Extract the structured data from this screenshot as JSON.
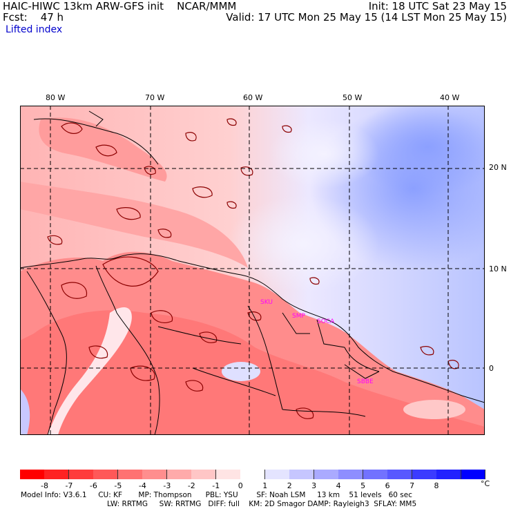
{
  "header": {
    "line1_left": "HAIC-HIWC 13km ARW-GFS init    NCAR/MMM",
    "line1_right": "Init: 18 UTC Sat 23 May 15",
    "line2_left": "Fcst:    47 h",
    "line2_right": "Valid: 17 UTC Mon 25 May 15 (14 LST Mon 25 May 15)",
    "field_name": "Lifted index"
  },
  "map": {
    "lon_labels": [
      "80 W",
      "70 W",
      "60 W",
      "50 W",
      "40 W"
    ],
    "lat_labels": [
      "20 N",
      "10 N",
      "0"
    ],
    "stations": [
      "SKU",
      "SMP",
      "SOCA",
      "SBBE"
    ],
    "colors": {
      "frame": "#000000",
      "grid": "#000000",
      "contour": "#8b0000",
      "station": "#ff00ff"
    }
  },
  "colorbar": {
    "ticks": [
      "-8",
      "-7",
      "-6",
      "-5",
      "-4",
      "-3",
      "-2",
      "-1",
      "0",
      "1",
      "2",
      "3",
      "4",
      "5",
      "6",
      "7",
      "8"
    ],
    "unit": "°C",
    "colors": [
      "#ff0000",
      "#ff2222",
      "#ff3c3c",
      "#ff5858",
      "#ff7272",
      "#ff8e8e",
      "#ffaaaa",
      "#ffc6c6",
      "#ffe4e4",
      "#ffffff",
      "#e4e4ff",
      "#c6c6ff",
      "#aaaaff",
      "#8e8eff",
      "#7272ff",
      "#5858ff",
      "#3c3cff",
      "#2222ff",
      "#0000ff"
    ]
  },
  "footer": {
    "line1": "Model Info: V3.6.1     CU: KF       MP: Thompson      PBL: YSU        SF: Noah LSM     13 km    51 levels   60 sec",
    "line2": "LW: RRTMG     SW: RRTMG   DIFF: full    KM: 2D Smagor DAMP: Rayleigh3  SFLAY: MM5"
  }
}
